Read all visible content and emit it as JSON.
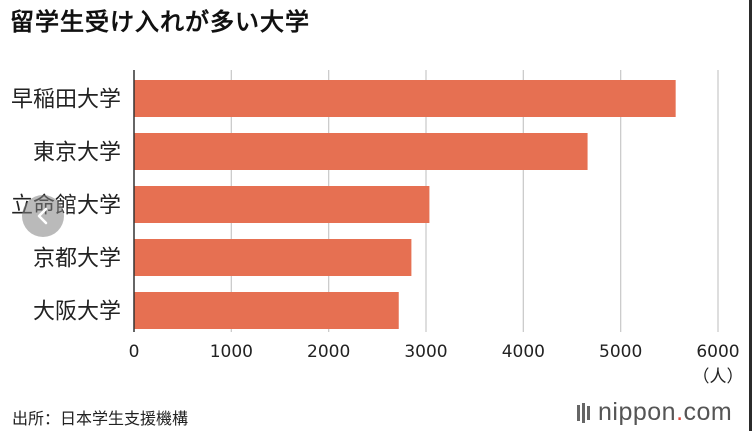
{
  "title": "留学生受け入れが多い大学",
  "source": "出所：日本学生支援機構",
  "logo": {
    "text": "nippon",
    "dot": ".",
    "suffix": "com"
  },
  "nav": {
    "icon": "chevron-left-icon"
  },
  "colors": {
    "bar": "#e67052",
    "grid": "#cccccc",
    "axis": "#333333"
  },
  "chart_data": {
    "type": "bar",
    "orientation": "horizontal",
    "title": "",
    "categories": [
      "早稲田大学",
      "東京大学",
      "立命館大学",
      "京都大学",
      "大阪大学"
    ],
    "values": [
      5565,
      4660,
      3035,
      2850,
      2720
    ],
    "xlim": [
      0,
      6000
    ],
    "xticks": [
      0,
      1000,
      2000,
      3000,
      4000,
      5000,
      6000
    ],
    "xunit": "（人）",
    "grid": true
  }
}
